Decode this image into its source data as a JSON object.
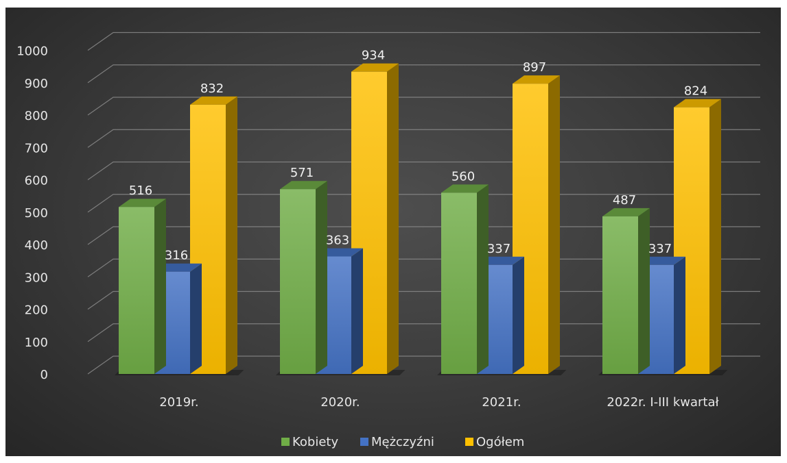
{
  "chart_data": {
    "type": "bar",
    "categories": [
      "2019r.",
      "2020r.",
      "2021r.",
      "2022r. I-III kwartał"
    ],
    "series": [
      {
        "name": "Kobiety",
        "values": [
          516,
          571,
          560,
          487
        ],
        "color": "#70ad47"
      },
      {
        "name": "Mężczyźni",
        "values": [
          316,
          363,
          337,
          337
        ],
        "color": "#4472c4"
      },
      {
        "name": "Ogółem",
        "values": [
          832,
          934,
          897,
          824
        ],
        "color": "#ffc000"
      }
    ],
    "ylim": [
      0,
      1000
    ],
    "yticks": [
      "0",
      "100",
      "200",
      "300",
      "400",
      "500",
      "600",
      "700",
      "800",
      "900",
      "1000"
    ],
    "grid": true,
    "legend_position": "bottom",
    "style": "3d-clustered-column"
  }
}
